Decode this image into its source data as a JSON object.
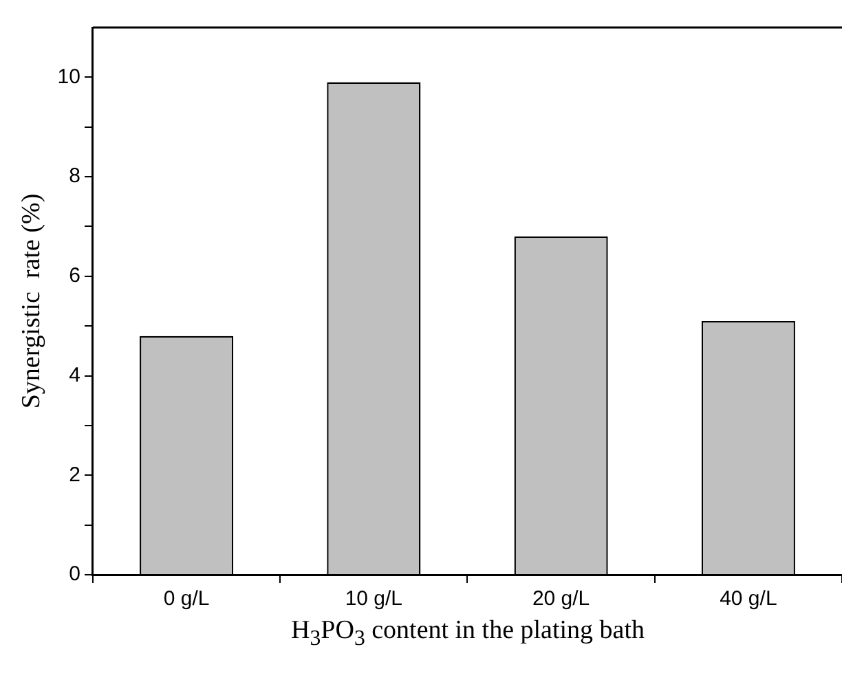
{
  "chart_data": {
    "type": "bar",
    "xlabel": "H$_{3}$PO$_{3}$ content in the plating bath",
    "ylabel": "Synergistic  rate (%)",
    "categories": [
      "0 g/L",
      "10 g/L",
      "20 g/L",
      "40 g/L"
    ],
    "values": [
      4.8,
      9.9,
      6.8,
      5.1
    ],
    "color": "#c0c0c0",
    "ylim": [
      0,
      11
    ],
    "yticks": [
      0,
      {
        "value": 1,
        "label": null
      },
      2,
      {
        "value": 3,
        "label": null
      },
      4,
      {
        "value": 5,
        "label": null
      },
      6,
      {
        "value": 7,
        "label": null
      },
      8,
      {
        "value": 9,
        "label": null
      },
      10
    ],
    "grid": false,
    "legend": false
  }
}
